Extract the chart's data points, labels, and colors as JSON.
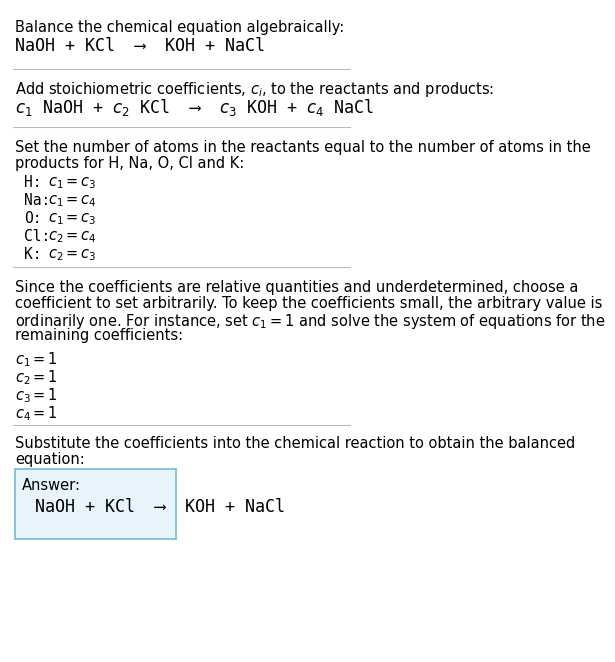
{
  "title_line1": "Balance the chemical equation algebraically:",
  "title_line2_normal": "NaOH + KCl  ⟶  KOH + NaCl",
  "section2_header": "Add stoichiometric coefficients, $c_i$, to the reactants and products:",
  "section2_equation": "$c_1$ NaOH + $c_2$ KCl  ⟶  $c_3$ KOH + $c_4$ NaCl",
  "section3_header_line1": "Set the number of atoms in the reactants equal to the number of atoms in the",
  "section3_header_line2": "products for H, Na, O, Cl and K:",
  "section3_rows": [
    [
      "H:",
      "$c_1 = c_3$"
    ],
    [
      "Na:",
      "$c_1 = c_4$"
    ],
    [
      "O:",
      "$c_1 = c_3$"
    ],
    [
      "Cl:",
      "$c_2 = c_4$"
    ],
    [
      "K:",
      "$c_2 = c_3$"
    ]
  ],
  "section4_text_line1": "Since the coefficients are relative quantities and underdetermined, choose a",
  "section4_text_line2": "coefficient to set arbitrarily. To keep the coefficients small, the arbitrary value is",
  "section4_text_line3": "ordinarily one. For instance, set $c_1 = 1$ and solve the system of equations for the",
  "section4_text_line4": "remaining coefficients:",
  "section4_coeff_lines": [
    "$c_1 = 1$",
    "$c_2 = 1$",
    "$c_3 = 1$",
    "$c_4 = 1$"
  ],
  "section5_line1": "Substitute the coefficients into the chemical reaction to obtain the balanced",
  "section5_line2": "equation:",
  "answer_label": "Answer:",
  "answer_equation": "NaOH + KCl  ⟶  KOH + NaCl",
  "bg_color": "#ffffff",
  "text_color": "#000000",
  "line_color": "#bbbbbb",
  "box_edge_color": "#7ab8d4",
  "box_face_color": "#e8f4fb",
  "font_size": 10.5,
  "mono_font": "DejaVu Sans Mono"
}
